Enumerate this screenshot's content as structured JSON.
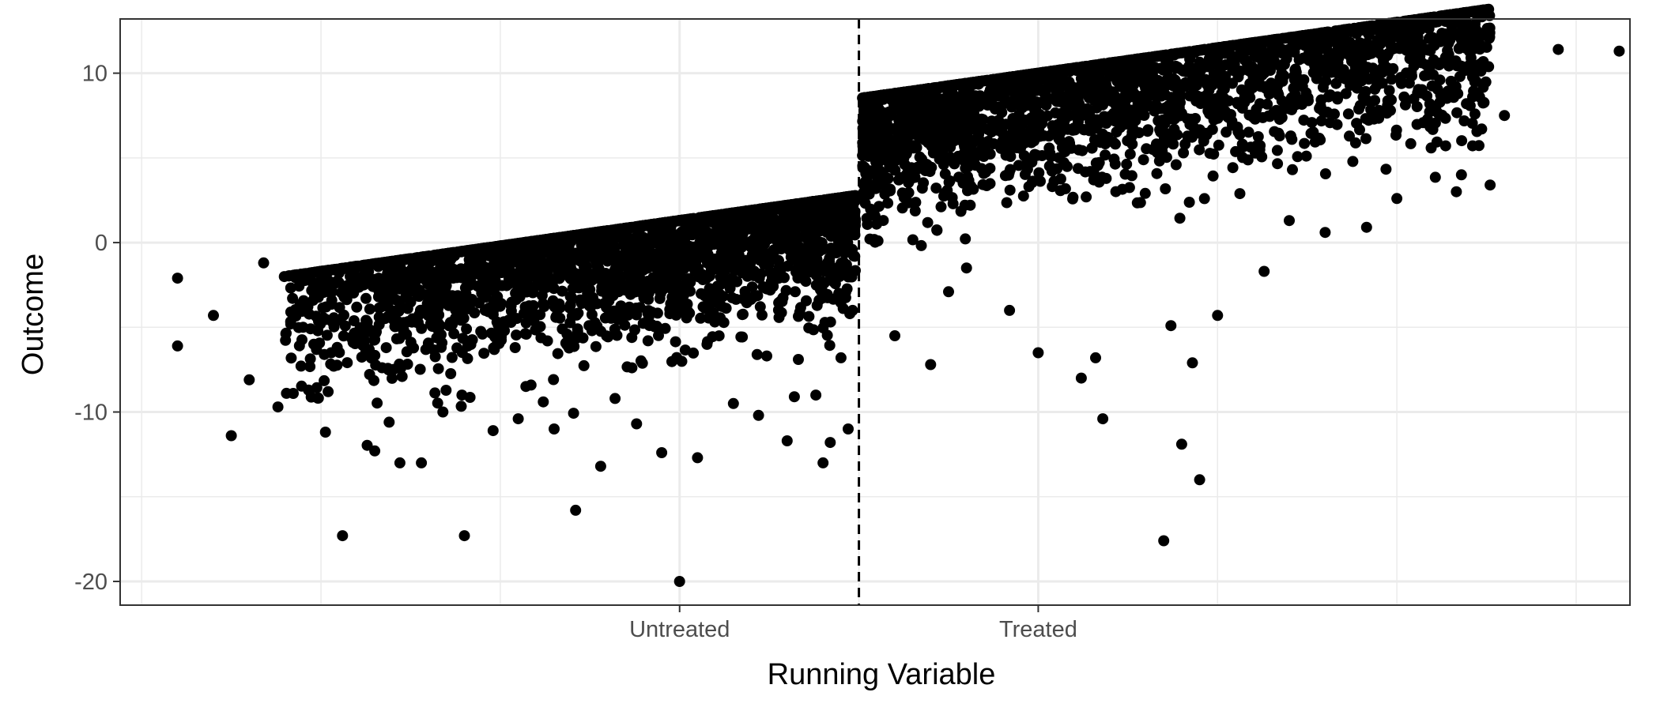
{
  "chart_data": {
    "type": "scatter",
    "title": "",
    "xlabel": "Running Variable",
    "ylabel": "Outcome",
    "x_ticks": [
      {
        "value": -0.5,
        "label": "Untreated"
      },
      {
        "value": 0.5,
        "label": "Treated"
      }
    ],
    "y_ticks": [
      -20,
      -10,
      0,
      10
    ],
    "xlim": [
      -2.06,
      2.15
    ],
    "ylim": [
      -21.4,
      13.2
    ],
    "cutoff": 0,
    "cutoff_line": "dashed",
    "grid": true,
    "legend": "none",
    "point_color": "#000000",
    "points_left": [
      [
        -1.9,
        -2.1
      ],
      [
        -1.9,
        -6.1
      ],
      [
        -1.75,
        -11.4
      ],
      [
        -1.62,
        -9.7
      ],
      [
        -1.44,
        -17.3
      ],
      [
        -1.1,
        -17.3
      ],
      [
        -1.28,
        -13.0
      ],
      [
        -1.22,
        -13.0
      ],
      [
        -0.85,
        -11.0
      ],
      [
        -0.79,
        -15.8
      ],
      [
        -0.72,
        -13.2
      ],
      [
        -0.5,
        -20.0
      ],
      [
        -0.45,
        -12.7
      ],
      [
        -0.55,
        -12.4
      ],
      [
        -0.1,
        -13.0
      ],
      [
        -0.08,
        -11.8
      ],
      [
        -0.2,
        -11.7
      ],
      [
        -0.03,
        -11.0
      ],
      [
        -1.7,
        -8.1
      ],
      [
        -1.55,
        -5.0
      ],
      [
        -1.48,
        -8.8
      ],
      [
        -1.35,
        -12.3
      ],
      [
        -1.31,
        -10.6
      ],
      [
        -1.16,
        -10.0
      ],
      [
        -1.02,
        -11.1
      ],
      [
        -0.95,
        -10.4
      ],
      [
        -0.88,
        -9.4
      ],
      [
        -0.68,
        -9.2
      ],
      [
        -0.62,
        -10.7
      ],
      [
        -0.35,
        -9.5
      ],
      [
        -0.28,
        -10.2
      ],
      [
        -0.12,
        -9.0
      ],
      [
        -0.18,
        -9.1
      ],
      [
        -0.05,
        -6.8
      ],
      [
        -1.8,
        -4.3
      ],
      [
        -1.66,
        -1.2
      ]
    ],
    "points_right": [
      [
        0.85,
        -17.6
      ],
      [
        0.95,
        -14.0
      ],
      [
        0.68,
        -10.4
      ],
      [
        0.9,
        -11.9
      ],
      [
        0.5,
        -6.5
      ],
      [
        0.66,
        -6.8
      ],
      [
        0.93,
        -7.1
      ],
      [
        0.87,
        -4.9
      ],
      [
        0.62,
        -8.0
      ],
      [
        0.42,
        -4.0
      ],
      [
        1.13,
        -1.7
      ],
      [
        1.0,
        -4.3
      ],
      [
        1.3,
        0.6
      ],
      [
        1.2,
        1.3
      ],
      [
        1.5,
        2.6
      ],
      [
        1.68,
        4.0
      ],
      [
        1.76,
        3.4
      ],
      [
        1.8,
        7.5
      ],
      [
        1.95,
        11.4
      ],
      [
        2.12,
        11.3
      ],
      [
        1.62,
        9.6
      ],
      [
        1.45,
        7.8
      ],
      [
        0.2,
        -7.2
      ],
      [
        0.1,
        -5.5
      ],
      [
        0.3,
        -1.5
      ],
      [
        0.25,
        -2.9
      ]
    ]
  }
}
